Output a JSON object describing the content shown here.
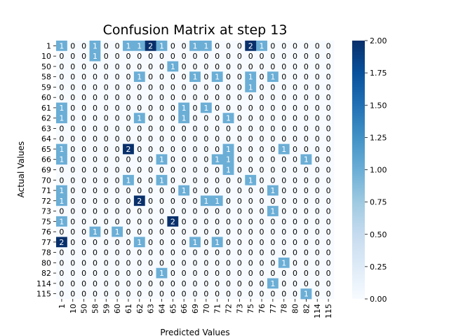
{
  "chart_data": {
    "type": "heatmap",
    "title": "Confusion Matrix at step 13",
    "xlabel": "Predicted Values",
    "ylabel": "Actual Values",
    "labels": [
      "1",
      "10",
      "50",
      "58",
      "59",
      "60",
      "61",
      "62",
      "63",
      "64",
      "65",
      "66",
      "69",
      "70",
      "71",
      "72",
      "73",
      "75",
      "76",
      "77",
      "78",
      "80",
      "82",
      "114",
      "115"
    ],
    "matrix": [
      [
        1,
        0,
        0,
        1,
        0,
        0,
        1,
        1,
        2,
        1,
        0,
        0,
        1,
        1,
        0,
        0,
        0,
        2,
        1,
        0,
        0,
        0,
        0,
        0,
        0
      ],
      [
        0,
        0,
        0,
        1,
        0,
        0,
        0,
        0,
        0,
        0,
        0,
        0,
        0,
        0,
        0,
        0,
        0,
        0,
        0,
        0,
        0,
        0,
        0,
        0,
        0
      ],
      [
        0,
        0,
        0,
        0,
        0,
        0,
        0,
        0,
        0,
        0,
        1,
        0,
        0,
        0,
        0,
        0,
        0,
        0,
        0,
        0,
        0,
        0,
        0,
        0,
        0
      ],
      [
        0,
        0,
        0,
        0,
        0,
        0,
        0,
        1,
        0,
        0,
        0,
        0,
        1,
        0,
        1,
        0,
        0,
        1,
        0,
        1,
        0,
        0,
        0,
        0,
        0
      ],
      [
        0,
        0,
        0,
        0,
        0,
        0,
        0,
        0,
        0,
        0,
        0,
        0,
        0,
        0,
        0,
        0,
        0,
        1,
        0,
        0,
        0,
        0,
        0,
        0,
        0
      ],
      [
        0,
        0,
        0,
        0,
        0,
        0,
        0,
        0,
        0,
        0,
        0,
        0,
        0,
        0,
        0,
        0,
        0,
        0,
        0,
        0,
        0,
        0,
        0,
        0,
        0
      ],
      [
        1,
        0,
        0,
        0,
        0,
        0,
        0,
        0,
        0,
        0,
        0,
        1,
        0,
        1,
        0,
        0,
        0,
        0,
        0,
        0,
        0,
        0,
        0,
        0,
        0
      ],
      [
        1,
        0,
        0,
        0,
        0,
        0,
        0,
        1,
        0,
        0,
        0,
        1,
        0,
        0,
        0,
        1,
        0,
        0,
        0,
        0,
        0,
        0,
        0,
        0,
        0
      ],
      [
        0,
        0,
        0,
        0,
        0,
        0,
        0,
        0,
        0,
        0,
        0,
        0,
        0,
        0,
        0,
        0,
        0,
        0,
        0,
        0,
        0,
        0,
        0,
        0,
        0
      ],
      [
        0,
        0,
        0,
        0,
        0,
        0,
        0,
        0,
        0,
        0,
        0,
        0,
        0,
        0,
        0,
        0,
        0,
        0,
        0,
        0,
        0,
        0,
        0,
        0,
        0
      ],
      [
        1,
        0,
        0,
        0,
        0,
        0,
        2,
        0,
        0,
        0,
        0,
        0,
        0,
        0,
        0,
        1,
        0,
        0,
        0,
        0,
        1,
        0,
        0,
        0,
        0
      ],
      [
        1,
        0,
        0,
        0,
        0,
        0,
        0,
        0,
        0,
        1,
        0,
        0,
        0,
        0,
        1,
        1,
        0,
        0,
        0,
        0,
        0,
        0,
        1,
        0,
        0
      ],
      [
        0,
        0,
        0,
        0,
        0,
        0,
        0,
        0,
        0,
        0,
        0,
        0,
        0,
        0,
        0,
        1,
        0,
        0,
        0,
        0,
        0,
        0,
        0,
        0,
        0
      ],
      [
        0,
        0,
        0,
        0,
        0,
        0,
        1,
        0,
        0,
        1,
        0,
        0,
        0,
        0,
        0,
        0,
        0,
        1,
        0,
        0,
        0,
        0,
        0,
        0,
        0
      ],
      [
        1,
        0,
        0,
        0,
        0,
        0,
        0,
        0,
        0,
        0,
        0,
        1,
        0,
        0,
        0,
        0,
        0,
        0,
        0,
        1,
        0,
        0,
        0,
        0,
        0
      ],
      [
        1,
        0,
        0,
        0,
        0,
        0,
        0,
        2,
        0,
        0,
        0,
        0,
        0,
        1,
        1,
        0,
        0,
        0,
        0,
        0,
        0,
        0,
        0,
        0,
        0
      ],
      [
        0,
        0,
        0,
        0,
        0,
        0,
        0,
        0,
        0,
        0,
        0,
        0,
        0,
        0,
        0,
        0,
        0,
        0,
        0,
        1,
        0,
        0,
        0,
        0,
        0
      ],
      [
        1,
        0,
        0,
        0,
        0,
        0,
        0,
        0,
        0,
        0,
        2,
        0,
        0,
        0,
        0,
        0,
        0,
        0,
        0,
        0,
        0,
        0,
        0,
        0,
        0
      ],
      [
        0,
        0,
        0,
        1,
        0,
        1,
        0,
        0,
        0,
        0,
        0,
        0,
        0,
        0,
        0,
        0,
        0,
        0,
        0,
        0,
        0,
        0,
        0,
        0,
        0
      ],
      [
        2,
        0,
        0,
        0,
        0,
        0,
        0,
        1,
        0,
        0,
        0,
        0,
        1,
        0,
        1,
        0,
        0,
        0,
        0,
        0,
        0,
        0,
        0,
        0,
        0
      ],
      [
        0,
        0,
        0,
        0,
        0,
        0,
        0,
        0,
        0,
        0,
        0,
        0,
        0,
        0,
        0,
        0,
        0,
        0,
        0,
        0,
        0,
        0,
        0,
        0,
        0
      ],
      [
        0,
        0,
        0,
        0,
        0,
        0,
        0,
        0,
        0,
        0,
        0,
        0,
        0,
        0,
        0,
        0,
        0,
        0,
        0,
        0,
        1,
        0,
        0,
        0,
        0
      ],
      [
        0,
        0,
        0,
        0,
        0,
        0,
        0,
        0,
        0,
        1,
        0,
        0,
        0,
        0,
        0,
        0,
        0,
        0,
        0,
        0,
        0,
        0,
        0,
        0,
        0
      ],
      [
        0,
        0,
        0,
        0,
        0,
        0,
        0,
        0,
        0,
        0,
        0,
        0,
        0,
        0,
        0,
        0,
        0,
        0,
        0,
        1,
        0,
        0,
        0,
        0,
        0
      ],
      [
        0,
        0,
        0,
        0,
        0,
        0,
        0,
        0,
        0,
        0,
        0,
        0,
        0,
        0,
        0,
        0,
        0,
        0,
        0,
        0,
        0,
        0,
        1,
        0,
        0
      ]
    ],
    "colorbar": {
      "min": 0,
      "max": 2,
      "ticks": [
        "0.00",
        "0.25",
        "0.50",
        "0.75",
        "1.00",
        "1.25",
        "1.50",
        "1.75",
        "2.00"
      ],
      "colormap": "Blues"
    },
    "colors": {
      "zero": "#f7fbff",
      "one": "#6baed6",
      "two": "#08306b"
    }
  }
}
